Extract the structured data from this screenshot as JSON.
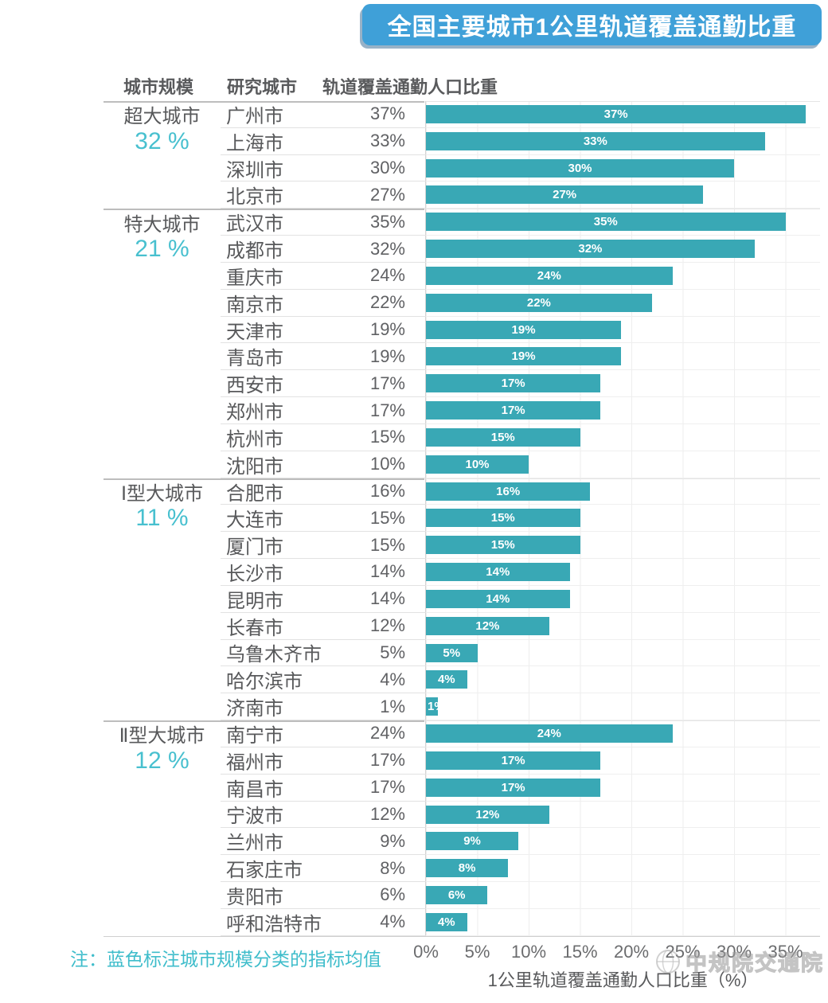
{
  "title": "全国主要城市1公里轨道覆盖通勤比重",
  "columns": {
    "scale": "城市规模",
    "city": "研究城市",
    "value": "轨道覆盖通勤人口比重"
  },
  "note": "注：蓝色标注城市规模分类的指标均值",
  "watermark": "中规院交通院",
  "x_axis": {
    "ticks": [
      "0%",
      "5%",
      "10%",
      "15%",
      "20%",
      "25%",
      "30%",
      "35%"
    ],
    "label": "1公里轨道覆盖通勤人口比重（%）"
  },
  "colors": {
    "banner_bg": "#3fa0d8",
    "bar_fill": "#39a8b5",
    "bar_label": "#ffffff",
    "highlight_teal": "#48c0cf",
    "note_teal": "#3fbdcb",
    "text_gray": "#58595b"
  },
  "chart_data": {
    "type": "bar",
    "orientation": "horizontal",
    "title": "全国主要城市1公里轨道覆盖通勤比重",
    "xlabel": "1公里轨道覆盖通勤人口比重（%）",
    "value_unit": "%",
    "xlim": [
      0,
      38.4
    ],
    "grid_step_percent": 5,
    "grid": true,
    "legend": false,
    "groups": [
      {
        "scale": "超大城市",
        "average": 32,
        "average_label": "32 %",
        "cities": [
          {
            "name": "广州市",
            "value": 37,
            "label": "37%"
          },
          {
            "name": "上海市",
            "value": 33,
            "label": "33%"
          },
          {
            "name": "深圳市",
            "value": 30,
            "label": "30%"
          },
          {
            "name": "北京市",
            "value": 27,
            "label": "27%"
          }
        ]
      },
      {
        "scale": "特大城市",
        "average": 21,
        "average_label": "21 %",
        "cities": [
          {
            "name": "武汉市",
            "value": 35,
            "label": "35%"
          },
          {
            "name": "成都市",
            "value": 32,
            "label": "32%"
          },
          {
            "name": "重庆市",
            "value": 24,
            "label": "24%"
          },
          {
            "name": "南京市",
            "value": 22,
            "label": "22%"
          },
          {
            "name": "天津市",
            "value": 19,
            "label": "19%"
          },
          {
            "name": "青岛市",
            "value": 19,
            "label": "19%"
          },
          {
            "name": "西安市",
            "value": 17,
            "label": "17%"
          },
          {
            "name": "郑州市",
            "value": 17,
            "label": "17%"
          },
          {
            "name": "杭州市",
            "value": 15,
            "label": "15%"
          },
          {
            "name": "沈阳市",
            "value": 10,
            "label": "10%"
          }
        ]
      },
      {
        "scale": "Ⅰ型大城市",
        "average": 11,
        "average_label": "11 %",
        "cities": [
          {
            "name": "合肥市",
            "value": 16,
            "label": "16%"
          },
          {
            "name": "大连市",
            "value": 15,
            "label": "15%"
          },
          {
            "name": "厦门市",
            "value": 15,
            "label": "15%"
          },
          {
            "name": "长沙市",
            "value": 14,
            "label": "14%"
          },
          {
            "name": "昆明市",
            "value": 14,
            "label": "14%"
          },
          {
            "name": "长春市",
            "value": 12,
            "label": "12%"
          },
          {
            "name": "乌鲁木齐市",
            "value": 5,
            "label": "5%"
          },
          {
            "name": "哈尔滨市",
            "value": 4,
            "label": "4%"
          },
          {
            "name": "济南市",
            "value": 1,
            "label": "1%"
          }
        ]
      },
      {
        "scale": "Ⅱ型大城市",
        "average": 12,
        "average_label": "12 %",
        "cities": [
          {
            "name": "南宁市",
            "value": 24,
            "label": "24%"
          },
          {
            "name": "福州市",
            "value": 17,
            "label": "17%"
          },
          {
            "name": "南昌市",
            "value": 17,
            "label": "17%"
          },
          {
            "name": "宁波市",
            "value": 12,
            "label": "12%"
          },
          {
            "name": "兰州市",
            "value": 9,
            "label": "9%"
          },
          {
            "name": "石家庄市",
            "value": 8,
            "label": "8%"
          },
          {
            "name": "贵阳市",
            "value": 6,
            "label": "6%"
          },
          {
            "name": "呼和浩特市",
            "value": 4,
            "label": "4%"
          }
        ]
      }
    ]
  }
}
